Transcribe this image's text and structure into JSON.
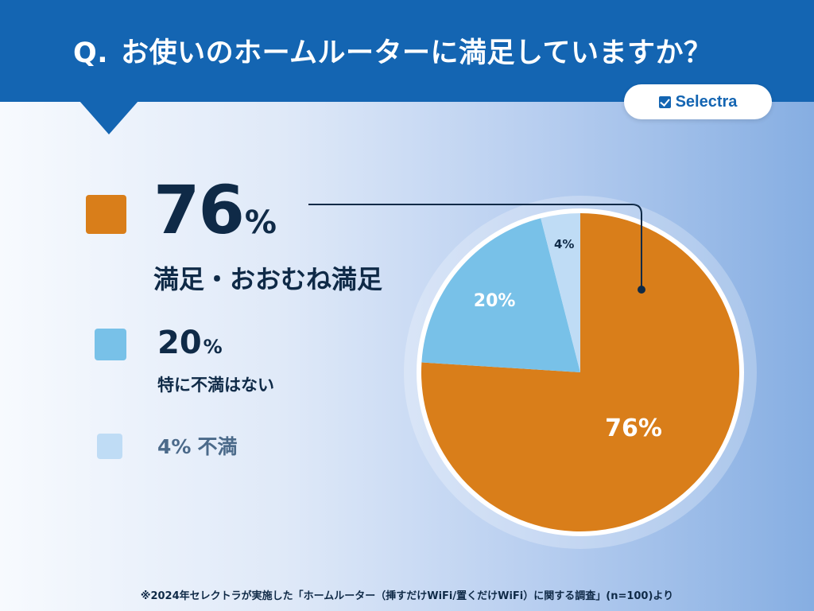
{
  "header": {
    "question_mark": "Q.",
    "question": "お使いのホームルーターに満足していますか？"
  },
  "brand": {
    "name": "Selectra"
  },
  "colors": {
    "header": "#1465b2",
    "satisfied": "#d97e1a",
    "neutral": "#78c1e8",
    "dissatisfied": "#bfdcf5",
    "text_dark": "#0f2a47",
    "text_muted": "#4b6a8a"
  },
  "legend": {
    "satisfied": {
      "value": "76",
      "unit": "%",
      "label": "満足・おおむね満足"
    },
    "neutral": {
      "value": "20",
      "unit": "%",
      "label": "特に不満はない"
    },
    "dissatisfied": {
      "value": "4%",
      "label": "不満"
    }
  },
  "chart_data": {
    "type": "pie",
    "slices": [
      {
        "label": "満足・おおむね満足",
        "value": 76,
        "display": "76%",
        "color": "#d97e1a"
      },
      {
        "label": "特に不満はない",
        "value": 20,
        "display": "20%",
        "color": "#78c1e8"
      },
      {
        "label": "不満",
        "value": 4,
        "display": "4%",
        "color": "#bfdcf5"
      }
    ]
  },
  "footnote": "※2024年セレクトラが実施した「ホームルーター（挿すだけWiFi/置くだけWiFi）に関する調査」(n=100)より"
}
